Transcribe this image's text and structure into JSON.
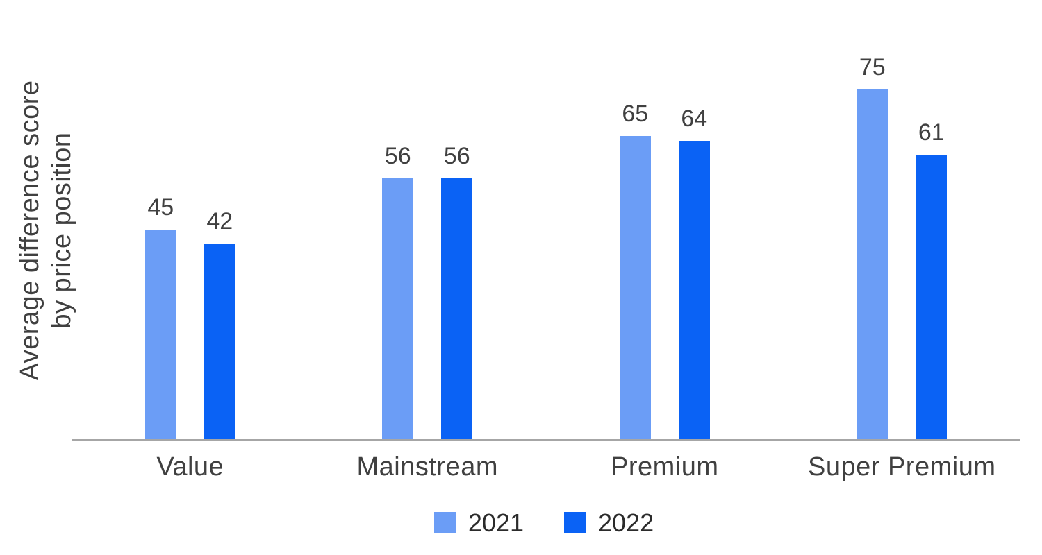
{
  "chart_data": {
    "type": "bar",
    "categories": [
      "Value",
      "Mainstream",
      "Premium",
      "Super Premium"
    ],
    "series": [
      {
        "name": "2021",
        "color": "#6B9DF6",
        "values": [
          45,
          56,
          65,
          75
        ]
      },
      {
        "name": "2022",
        "color": "#0A62F5",
        "values": [
          42,
          56,
          64,
          61
        ]
      }
    ],
    "title": "",
    "xlabel": "",
    "ylabel": "Average difference score by price position",
    "ylim": [
      0,
      80
    ],
    "grid": false,
    "value_labels": true,
    "legend_position": "bottom"
  },
  "axis": {
    "ylabel_line1": "Average difference score",
    "ylabel_line2": "by price position"
  },
  "colors": {
    "series_2021": "#6B9DF6",
    "series_2022": "#0A62F5",
    "axis_line": "#A6A6A6",
    "text": "#404040",
    "background": "#FFFFFF"
  },
  "legend": {
    "items": [
      {
        "label": "2021",
        "color": "#6B9DF6"
      },
      {
        "label": "2022",
        "color": "#0A62F5"
      }
    ]
  }
}
